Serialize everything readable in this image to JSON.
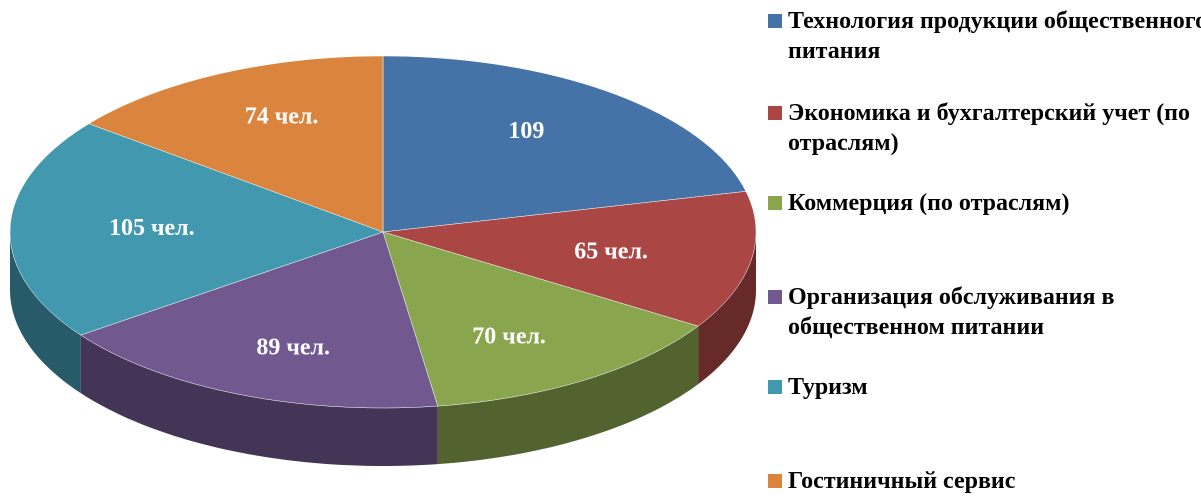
{
  "chart_data": {
    "type": "pie3d",
    "categories": [
      "Технология продукции общественного питания",
      "Экономика и бухгалтерский учет (по отраслям)",
      "Коммерция (по отраслям)",
      "Организация обслуживания в общественном питании",
      "Туризм",
      "Гостиничный сервис"
    ],
    "values": [
      109,
      65,
      70,
      89,
      105,
      74
    ],
    "value_labels": [
      "109",
      "65 чел.",
      "70 чел.",
      "89 чел.",
      "105 чел.",
      "74 чел."
    ],
    "colors": [
      "#4572a7",
      "#aa4643",
      "#89a54e",
      "#71588f",
      "#4198af",
      "#db843d"
    ],
    "legend": "right"
  }
}
